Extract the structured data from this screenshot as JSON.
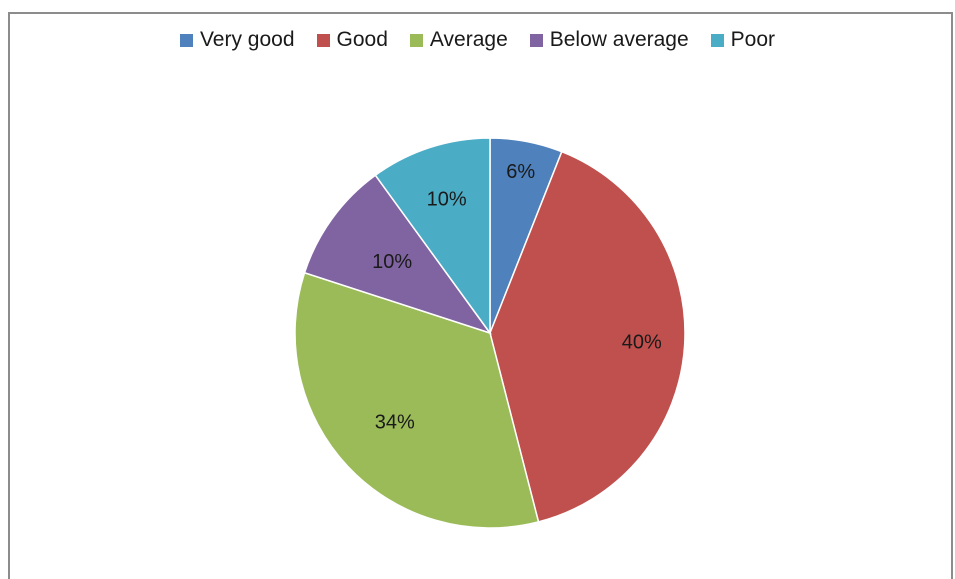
{
  "chart_data": {
    "type": "pie",
    "title": "",
    "categories": [
      "Very good",
      "Good",
      "Average",
      "Below average",
      "Poor"
    ],
    "values": [
      6,
      40,
      34,
      10,
      10
    ],
    "value_labels": [
      "6%",
      "40%",
      "34%",
      "10%",
      "10%"
    ],
    "colors": [
      "#4f81bd",
      "#c0504d",
      "#9bbb59",
      "#8064a2",
      "#4bacc6"
    ],
    "legend_position": "top",
    "start_angle": "12 o'clock",
    "direction": "clockwise"
  }
}
